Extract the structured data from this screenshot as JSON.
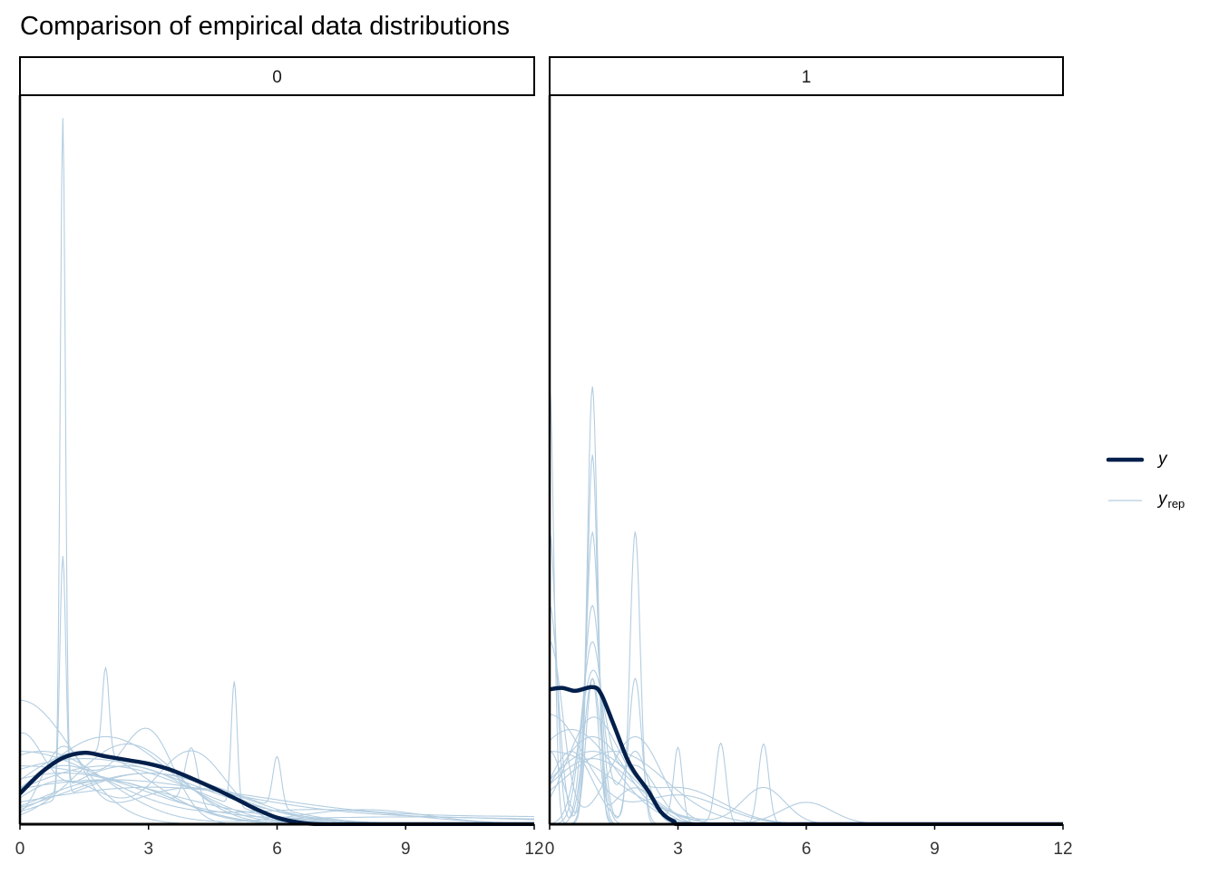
{
  "chart_data": {
    "type": "line",
    "title": "Comparison of empirical data distributions",
    "xlabel": "",
    "ylabel": "",
    "xlim": [
      0,
      12
    ],
    "ylim": [
      0,
      1
    ],
    "x_ticks": [
      0,
      3,
      6,
      9,
      12
    ],
    "x_tick_labels": [
      "0",
      "3",
      "6",
      "9",
      "12"
    ],
    "grid": false,
    "legend": {
      "placement": "right",
      "entries": [
        {
          "label": "y",
          "color": "#011f4b"
        },
        {
          "label": "y",
          "subscript": "rep",
          "color": "#b3cde0"
        }
      ]
    },
    "y_color": "#011f4b",
    "yrep_color": "#b3cde0",
    "yrep_note": "yrep curves given as gaussian mixture components [mean, sd, peak height] in data units",
    "panels": [
      {
        "strip_label": "0",
        "y": {
          "x": [
            0,
            0.5,
            1,
            1.5,
            2,
            2.5,
            3,
            3.5,
            4,
            4.5,
            5,
            5.5,
            6,
            6.5,
            7,
            8,
            10,
            12
          ],
          "density": [
            0.042,
            0.071,
            0.091,
            0.098,
            0.093,
            0.088,
            0.083,
            0.075,
            0.063,
            0.05,
            0.036,
            0.021,
            0.009,
            0.0025,
            0,
            0,
            0,
            0
          ]
        },
        "yrep": [
          [
            [
              1,
              0.06,
              0.92
            ],
            [
              2.5,
              1.5,
              0.08
            ]
          ],
          [
            [
              1,
              0.07,
              0.33
            ],
            [
              3,
              1.8,
              0.07
            ]
          ],
          [
            [
              5,
              0.07,
              0.17
            ],
            [
              2,
              2,
              0.08
            ]
          ],
          [
            [
              2,
              0.08,
              0.12
            ],
            [
              1.5,
              1.5,
              0.1
            ]
          ],
          [
            [
              6,
              0.1,
              0.07
            ],
            [
              3,
              2,
              0.07
            ]
          ],
          [
            [
              3,
              0.6,
              0.12
            ],
            [
              1,
              1,
              0.08
            ]
          ],
          [
            [
              0,
              1.2,
              0.17
            ]
          ],
          [
            [
              4,
              0.8,
              0.1
            ],
            [
              1,
              1,
              0.06
            ]
          ],
          [
            [
              2,
              1.5,
              0.12
            ]
          ],
          [
            [
              0.5,
              1.5,
              0.1
            ],
            [
              8,
              1.5,
              0.02
            ]
          ],
          [
            [
              1.5,
              2.5,
              0.09
            ]
          ],
          [
            [
              3,
              3,
              0.05
            ],
            [
              12,
              4,
              0.01
            ]
          ],
          [
            [
              1,
              0.5,
              0.1
            ],
            [
              4,
              1.5,
              0.05
            ]
          ],
          [
            [
              0,
              2,
              0.1
            ],
            [
              7,
              2,
              0.02
            ]
          ],
          [
            [
              2.5,
              1.2,
              0.11
            ]
          ],
          [
            [
              4,
              0.15,
              0.08
            ],
            [
              2,
              1.5,
              0.06
            ]
          ],
          [
            [
              0,
              3,
              0.08
            ]
          ],
          [
            [
              1,
              2,
              0.07
            ],
            [
              9,
              3,
              0.01
            ]
          ],
          [
            [
              2,
              3,
              0.06
            ],
            [
              10,
              4,
              0.008
            ]
          ],
          [
            [
              0,
              0.5,
              0.1
            ],
            [
              2,
              1.5,
              0.06
            ]
          ]
        ]
      },
      {
        "strip_label": "1",
        "y": {
          "x": [
            0,
            0.3,
            0.6,
            1.0,
            1.2,
            1.5,
            1.8,
            2.0,
            2.3,
            2.6,
            2.9,
            3.2,
            6,
            12
          ],
          "density": [
            0.185,
            0.187,
            0.183,
            0.188,
            0.179,
            0.136,
            0.091,
            0.07,
            0.046,
            0.017,
            0.004,
            0,
            0,
            0
          ]
        },
        "yrep": [
          [
            [
              1,
              0.12,
              0.6
            ],
            [
              0,
              0.3,
              0.1
            ]
          ],
          [
            [
              1,
              0.12,
              0.5
            ],
            [
              2,
              0.5,
              0.05
            ]
          ],
          [
            [
              0,
              0.1,
              0.6
            ],
            [
              1,
              0.15,
              0.2
            ]
          ],
          [
            [
              1,
              0.15,
              0.4
            ],
            [
              0,
              0.2,
              0.3
            ]
          ],
          [
            [
              2,
              0.12,
              0.4
            ],
            [
              0.5,
              0.5,
              0.1
            ]
          ],
          [
            [
              1,
              0.2,
              0.3
            ],
            [
              2,
              0.15,
              0.2
            ]
          ],
          [
            [
              0,
              0.15,
              0.4
            ],
            [
              1,
              0.2,
              0.2
            ]
          ],
          [
            [
              3,
              0.1,
              0.1
            ],
            [
              1,
              0.8,
              0.12
            ]
          ],
          [
            [
              4,
              0.12,
              0.11
            ],
            [
              1,
              1,
              0.1
            ]
          ],
          [
            [
              5,
              0.12,
              0.11
            ],
            [
              1,
              1,
              0.09
            ]
          ],
          [
            [
              1,
              0.6,
              0.14
            ],
            [
              3,
              1,
              0.05
            ]
          ],
          [
            [
              0.5,
              1,
              0.13
            ],
            [
              6,
              0.6,
              0.03
            ]
          ],
          [
            [
              0,
              1.5,
              0.1
            ],
            [
              5,
              0.5,
              0.05
            ]
          ],
          [
            [
              1,
              0.25,
              0.25
            ],
            [
              2,
              0.3,
              0.1
            ]
          ],
          [
            [
              0,
              0.3,
              0.25
            ],
            [
              2,
              0.6,
              0.12
            ]
          ],
          [
            [
              1.5,
              1.2,
              0.1
            ]
          ],
          [
            [
              0,
              0.8,
              0.15
            ],
            [
              3,
              1,
              0.04
            ]
          ],
          [
            [
              1,
              0.3,
              0.2
            ],
            [
              2,
              0.5,
              0.08
            ]
          ]
        ]
      }
    ]
  }
}
